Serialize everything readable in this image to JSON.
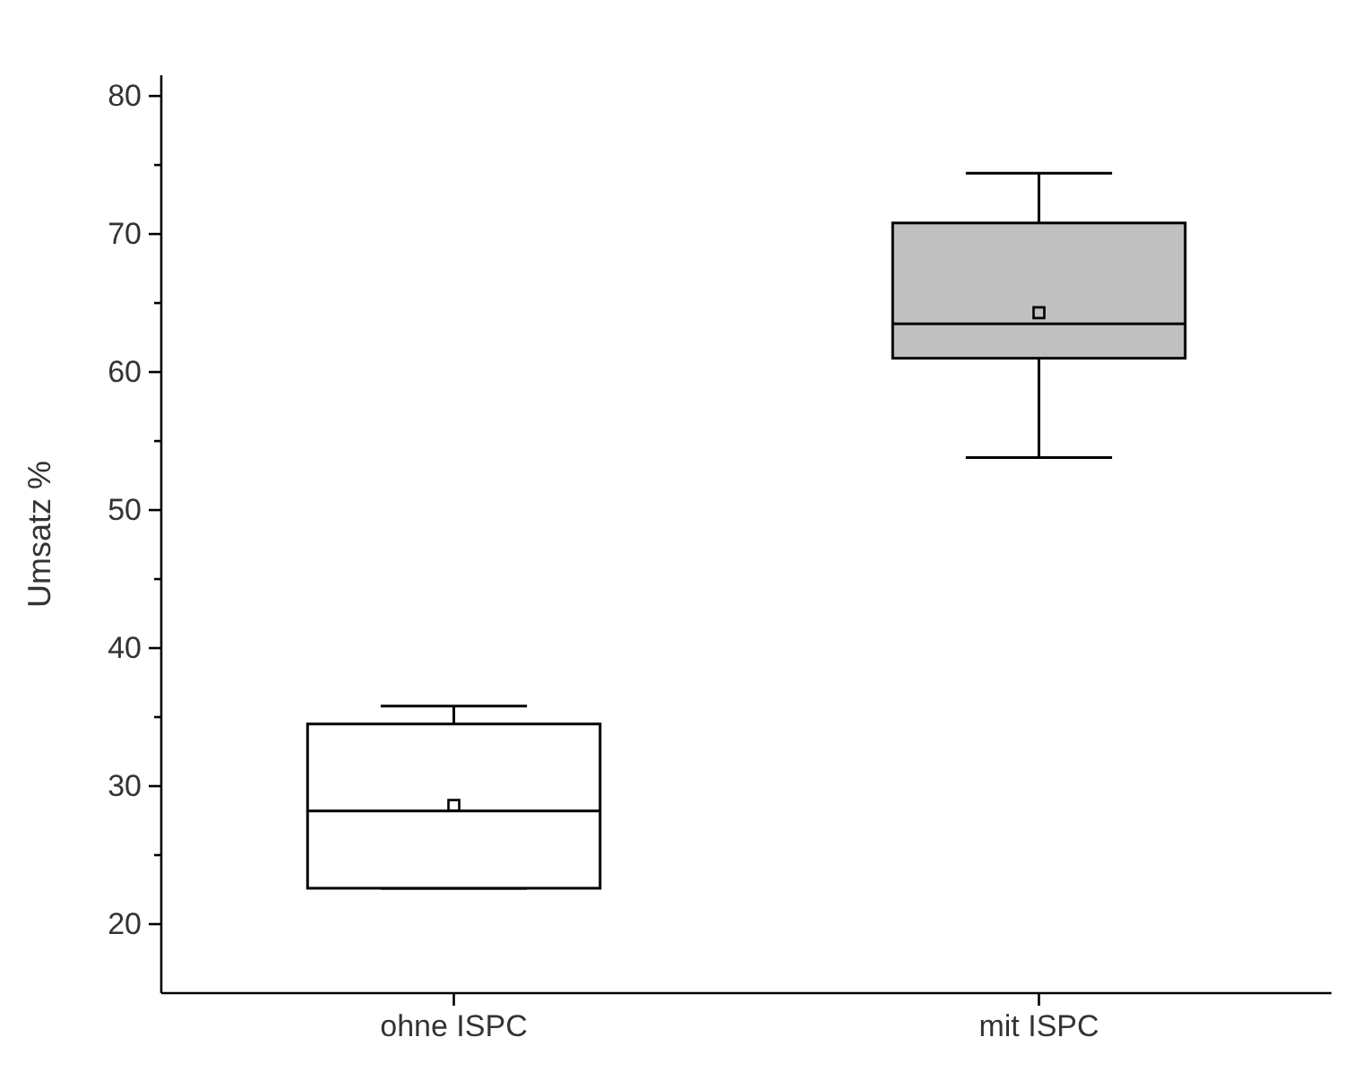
{
  "chart_data": {
    "type": "box",
    "ylabel": "Umsatz %",
    "categories": [
      "ohne ISPC",
      "mit ISPC"
    ],
    "colors": [
      "#ffffff",
      "#c0c0c0"
    ],
    "boxes": [
      {
        "low": 22.6,
        "q1": 22.6,
        "median": 28.2,
        "q3": 34.5,
        "high": 35.8,
        "mean": 28.6
      },
      {
        "low": 53.8,
        "q1": 61.0,
        "median": 63.5,
        "q3": 70.8,
        "high": 74.4,
        "mean": 64.3
      }
    ],
    "ylim": [
      15,
      81.5
    ],
    "yticks": [
      20,
      {
        "value": 25,
        "label": null
      },
      30,
      {
        "value": 35,
        "label": null
      },
      40,
      {
        "value": 45,
        "label": null
      },
      50,
      {
        "value": 55,
        "label": null
      },
      60,
      {
        "value": 65,
        "label": null
      },
      70,
      {
        "value": 75,
        "label": null
      },
      80
    ],
    "marker": "square",
    "grid": false
  }
}
